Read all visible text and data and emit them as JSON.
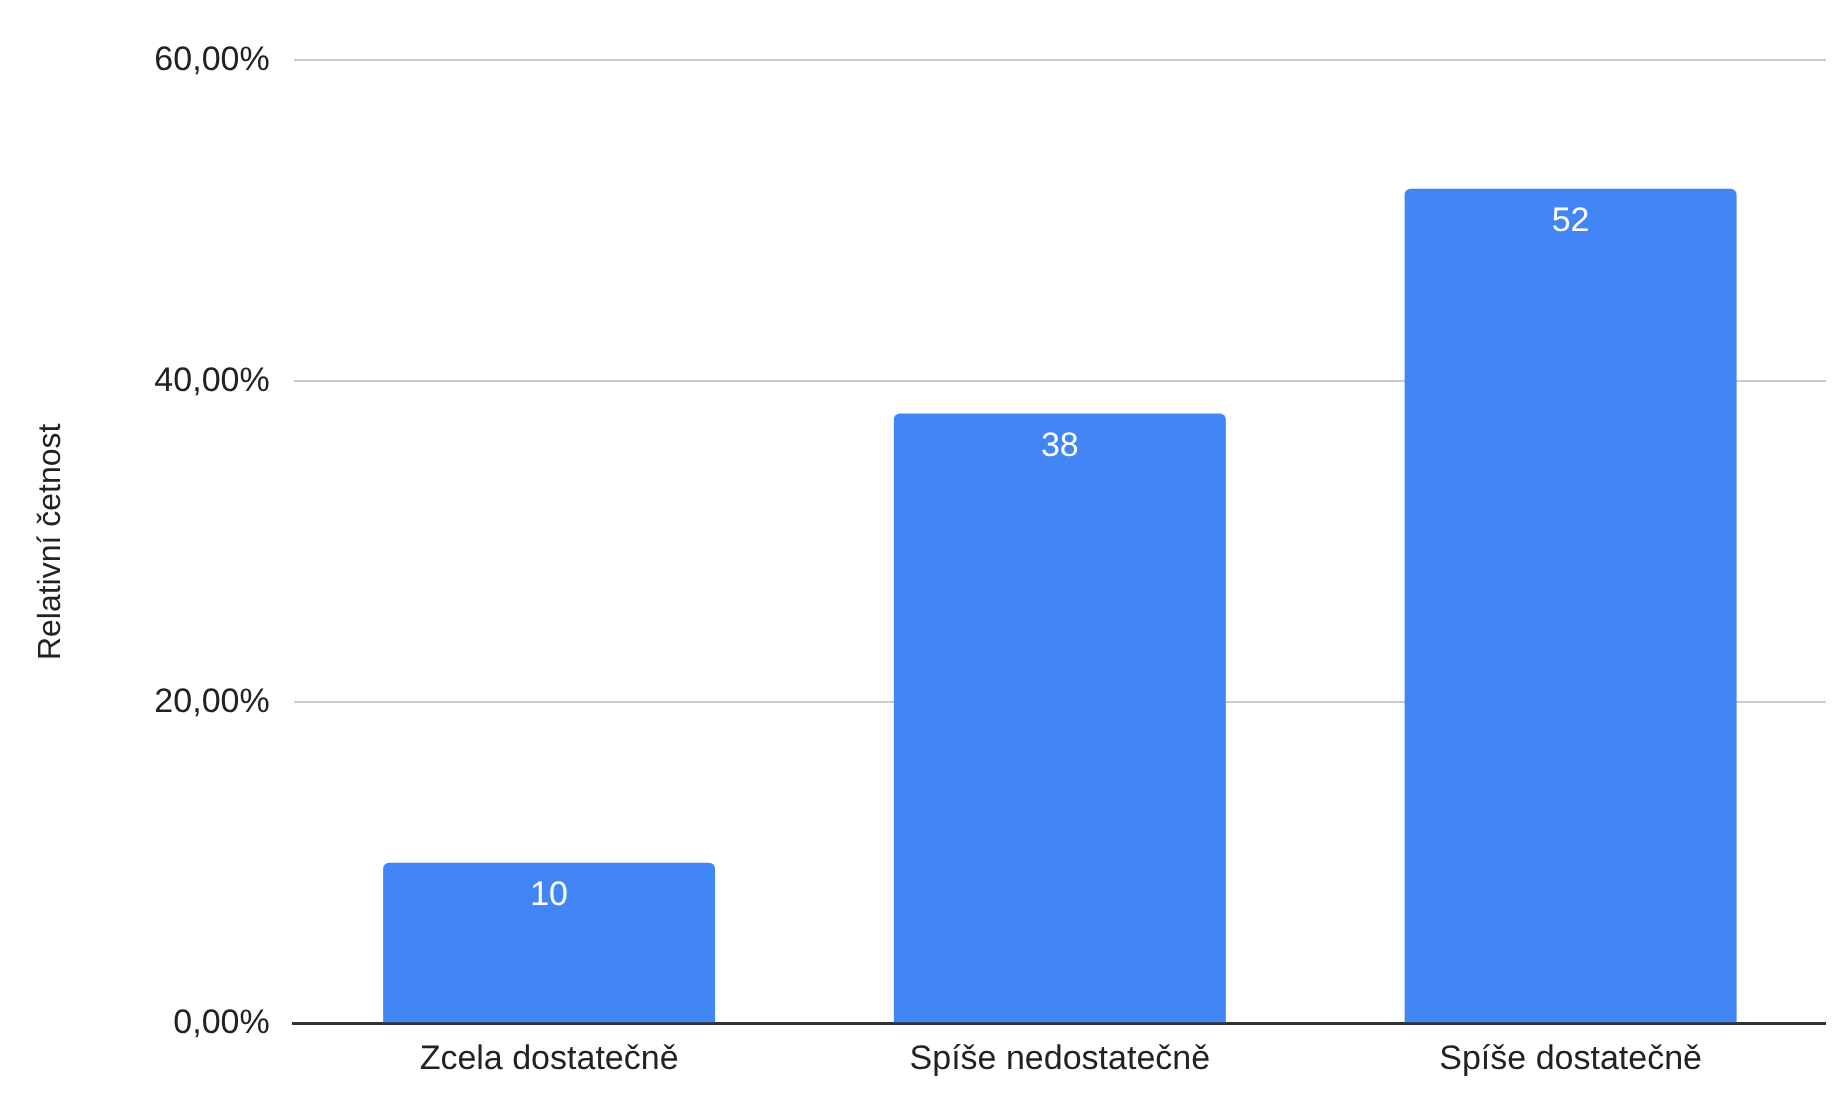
{
  "chart_data": {
    "type": "bar",
    "ylabel": "Relativní četnost",
    "categories": [
      "Zcela dostatečně",
      "Spíše nedostatečně",
      "Spíše dostatečně"
    ],
    "values": [
      10,
      38,
      52
    ],
    "color": "#4285f4",
    "ylim": [
      0,
      60
    ],
    "yticks": [
      {
        "value": 0,
        "label": "0,00%"
      },
      {
        "value": 20,
        "label": "20,00%"
      },
      {
        "value": 40,
        "label": "40,00%"
      },
      {
        "value": 60,
        "label": "60,00%"
      }
    ],
    "grid": "y",
    "data_labels": true,
    "legend": false
  }
}
